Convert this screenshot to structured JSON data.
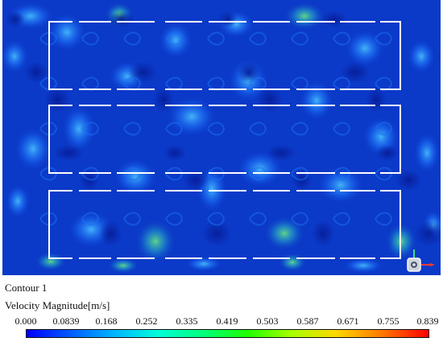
{
  "viewport": {
    "background_color": "#0b39c8",
    "wall_color": "#ffffff",
    "triad_icon": "axis-triad-icon"
  },
  "contour": {
    "name": "Contour 1",
    "variable": "Velocity Magnitude[m/s]"
  },
  "legend": {
    "ticks": [
      "0.000",
      "0.0839",
      "0.168",
      "0.252",
      "0.335",
      "0.419",
      "0.503",
      "0.587",
      "0.671",
      "0.755",
      "0.839"
    ],
    "min_value": 0.0,
    "max_value": 0.839,
    "colors": {
      "low": "#0000ff",
      "mid": "#20ff00",
      "high": "#ff0000"
    }
  }
}
